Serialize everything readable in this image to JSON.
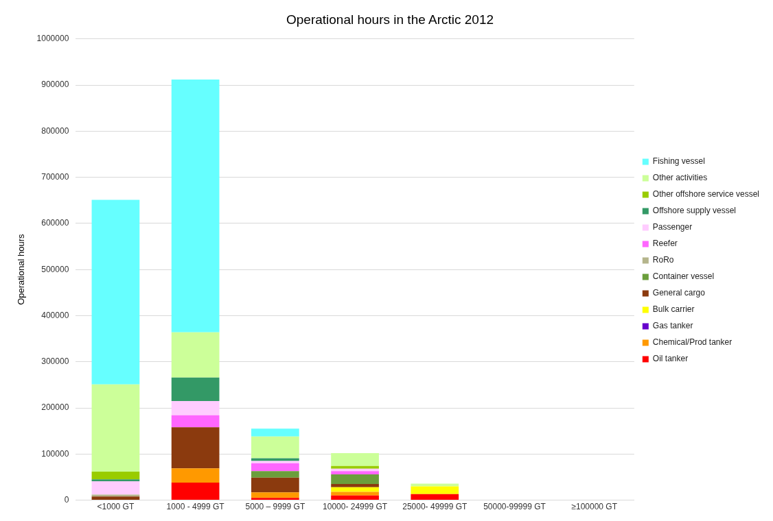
{
  "chart_data": {
    "type": "bar",
    "title": "Operational hours in the Arctic 2012",
    "ylabel": "Operational hours",
    "categories": [
      "<1000 GT",
      "1000 - 4999 GT",
      "5000 – 9999 GT",
      "10000- 24999 GT",
      "25000- 49999 GT",
      "50000-99999 GT",
      "≥100000 GT"
    ],
    "stacked": true,
    "legend": "right",
    "grid": "y",
    "ylim": [
      0,
      1000000
    ],
    "yticks": [
      0,
      100000,
      200000,
      300000,
      400000,
      500000,
      600000,
      700000,
      800000,
      900000,
      1000000
    ],
    "series": [
      {
        "name": "Oil tanker",
        "color": "#ff0000",
        "values": [
          0,
          38000,
          5000,
          10000,
          13000,
          0,
          0
        ]
      },
      {
        "name": "Chemical/Prod tanker",
        "color": "#ff9900",
        "values": [
          0,
          31000,
          12000,
          8000,
          0,
          0,
          0
        ]
      },
      {
        "name": "Gas tanker",
        "color": "#6600cc",
        "values": [
          0,
          0,
          0,
          0,
          0,
          0,
          0
        ]
      },
      {
        "name": "Bulk carrier",
        "color": "#ffff00",
        "values": [
          0,
          0,
          0,
          10000,
          17000,
          0,
          0
        ]
      },
      {
        "name": "General cargo",
        "color": "#8b3a0e",
        "values": [
          8000,
          89000,
          32000,
          7000,
          0,
          0,
          0
        ]
      },
      {
        "name": "Container vessel",
        "color": "#6b9e3c",
        "values": [
          0,
          0,
          14000,
          21000,
          0,
          0,
          0
        ]
      },
      {
        "name": "RoRo",
        "color": "#b5b58c",
        "values": [
          4000,
          0,
          0,
          0,
          0,
          0,
          0
        ]
      },
      {
        "name": "Reefer",
        "color": "#ff66ff",
        "values": [
          0,
          26000,
          17000,
          7000,
          0,
          0,
          0
        ]
      },
      {
        "name": "Passenger",
        "color": "#ffccff",
        "values": [
          29000,
          31000,
          5000,
          5000,
          0,
          null,
          null
        ]
      },
      {
        "name": "Offshore supply vessel",
        "color": "#339966",
        "values": [
          4000,
          51000,
          6000,
          0,
          0,
          0,
          0
        ]
      },
      {
        "name": "Other offshore service vessel",
        "color": "#99cc00",
        "values": [
          17000,
          0,
          0,
          6000,
          0,
          0,
          0
        ]
      },
      {
        "name": "Other activities",
        "color": "#ccff99",
        "values": [
          189000,
          98000,
          47000,
          28000,
          6000,
          0,
          0
        ]
      },
      {
        "name": "Fishing vessel",
        "color": "#66ffff",
        "values": [
          400000,
          548000,
          17000,
          0,
          0,
          0,
          0
        ]
      }
    ]
  }
}
